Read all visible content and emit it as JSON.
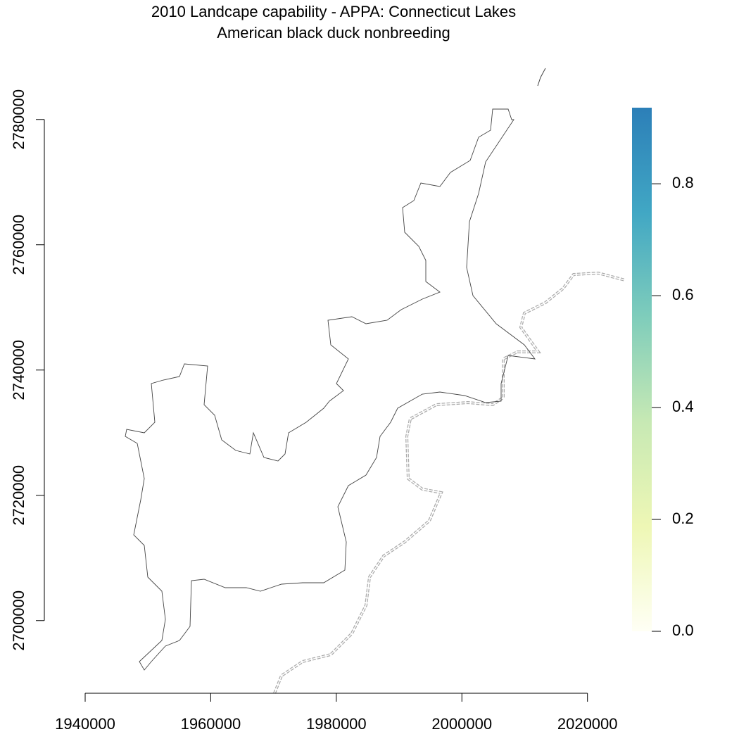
{
  "chart_data": {
    "type": "raster",
    "title": [
      "2010 Landcape capability - APPA: Connecticut Lakes",
      "American black duck nonbreeding"
    ],
    "xlim": [
      1933500,
      2026200
    ],
    "ylim": [
      2688400,
      2788400
    ],
    "xticks": [
      1940000,
      1960000,
      1980000,
      2000000,
      2020000
    ],
    "yticks": [
      2700000,
      2720000,
      2740000,
      2760000,
      2780000
    ],
    "colorbar": {
      "zlim": [
        0,
        0.936
      ],
      "ticks": [
        {
          "value": 0,
          "label": "0.0"
        },
        0.2,
        0.4,
        0.6,
        0.8
      ],
      "colors": [
        "#fffff5",
        "#eef7b5",
        "#c7e9b4",
        "#7fcdbb",
        "#41a7c4",
        "#2c7fb8"
      ]
    }
  }
}
